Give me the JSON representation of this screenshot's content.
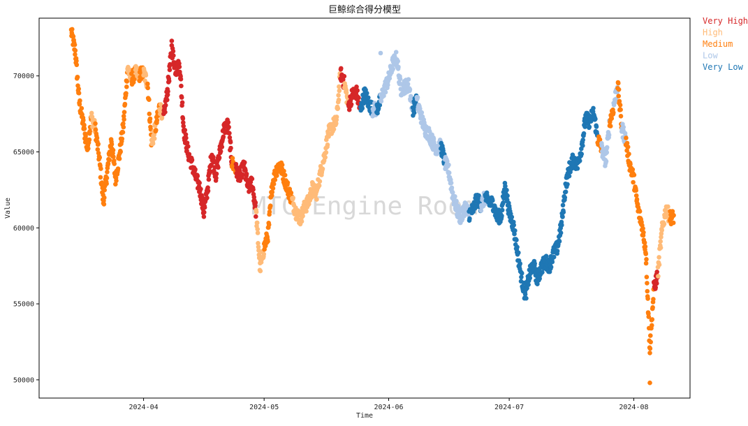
{
  "chart_data": {
    "type": "scatter",
    "title": "巨鲸综合得分模型",
    "xlabel": "Time",
    "ylabel": "Value",
    "watermark": "MTC Engine Room",
    "x_ticks": [
      "2024-04",
      "2024-05",
      "2024-06",
      "2024-07",
      "2024-08"
    ],
    "y_ticks": [
      50000,
      55000,
      60000,
      65000,
      70000
    ],
    "ylim": [
      48800,
      73800
    ],
    "xlim": [
      "2024-03-06",
      "2024-08-15"
    ],
    "legend_position": "outside-top-right",
    "grid": false,
    "categories": [
      {
        "name": "Very High",
        "color": "#d62728"
      },
      {
        "name": "High",
        "color": "#ffbb78"
      },
      {
        "name": "Medium",
        "color": "#ff7f0e"
      },
      {
        "name": "Low",
        "color": "#aec7e8"
      },
      {
        "name": "Very Low",
        "color": "#1f77b4"
      }
    ],
    "segments": [
      [
        "2024-03-14",
        72900,
        "Medium"
      ],
      [
        "2024-03-15",
        71600,
        "Medium"
      ],
      [
        "2024-03-16",
        68300,
        "Medium"
      ],
      [
        "2024-03-17",
        66800,
        "Medium"
      ],
      [
        "2024-03-18",
        65200,
        "Medium"
      ],
      [
        "2024-03-19",
        67300,
        "High"
      ],
      [
        "2024-03-20",
        66500,
        "Medium"
      ],
      [
        "2024-03-21",
        64500,
        "Medium"
      ],
      [
        "2024-03-22",
        61700,
        "Medium"
      ],
      [
        "2024-03-23",
        63800,
        "Medium"
      ],
      [
        "2024-03-24",
        65800,
        "Medium"
      ],
      [
        "2024-03-25",
        63200,
        "Medium"
      ],
      [
        "2024-03-26",
        64800,
        "Medium"
      ],
      [
        "2024-03-27",
        66800,
        "Medium"
      ],
      [
        "2024-03-28",
        70500,
        "High"
      ],
      [
        "2024-03-29",
        69800,
        "Medium"
      ],
      [
        "2024-03-30",
        70200,
        "High"
      ],
      [
        "2024-03-31",
        70100,
        "Medium"
      ],
      [
        "2024-04-01",
        70200,
        "High"
      ],
      [
        "2024-04-02",
        69500,
        "Medium"
      ],
      [
        "2024-04-03",
        65500,
        "High"
      ],
      [
        "2024-04-04",
        66600,
        "Medium"
      ],
      [
        "2024-04-05",
        68000,
        "High"
      ],
      [
        "2024-04-06",
        67300,
        "Very High"
      ],
      [
        "2024-04-07",
        69100,
        "Very High"
      ],
      [
        "2024-04-08",
        71800,
        "Very High"
      ],
      [
        "2024-04-09",
        70400,
        "Very High"
      ],
      [
        "2024-04-10",
        70700,
        "Very High"
      ],
      [
        "2024-04-11",
        66500,
        "Very High"
      ],
      [
        "2024-04-12",
        65000,
        "Very High"
      ],
      [
        "2024-04-13",
        64200,
        "Very High"
      ],
      [
        "2024-04-14",
        63300,
        "Very High"
      ],
      [
        "2024-04-15",
        62600,
        "Very High"
      ],
      [
        "2024-04-16",
        61000,
        "Very High"
      ],
      [
        "2024-04-17",
        62700,
        "Very High"
      ],
      [
        "2024-04-18",
        64900,
        "Very High"
      ],
      [
        "2024-04-19",
        63500,
        "Very High"
      ],
      [
        "2024-04-20",
        65000,
        "Very High"
      ],
      [
        "2024-04-21",
        66500,
        "Very High"
      ],
      [
        "2024-04-22",
        66800,
        "Very High"
      ],
      [
        "2024-04-23",
        64300,
        "Medium"
      ],
      [
        "2024-04-24",
        63800,
        "Very High"
      ],
      [
        "2024-04-25",
        63400,
        "Very High"
      ],
      [
        "2024-04-26",
        64100,
        "Very High"
      ],
      [
        "2024-04-27",
        62600,
        "Very High"
      ],
      [
        "2024-04-28",
        63000,
        "Very High"
      ],
      [
        "2024-04-29",
        61000,
        "High"
      ],
      [
        "2024-04-30",
        57300,
        "High"
      ],
      [
        "2024-05-01",
        58700,
        "Medium"
      ],
      [
        "2024-05-02",
        59600,
        "Medium"
      ],
      [
        "2024-05-03",
        62800,
        "Medium"
      ],
      [
        "2024-05-04",
        63800,
        "Medium"
      ],
      [
        "2024-05-05",
        64200,
        "Medium"
      ],
      [
        "2024-05-06",
        63300,
        "Medium"
      ],
      [
        "2024-05-07",
        62500,
        "Medium"
      ],
      [
        "2024-05-08",
        61800,
        "High"
      ],
      [
        "2024-05-09",
        61000,
        "High"
      ],
      [
        "2024-05-10",
        60600,
        "High"
      ],
      [
        "2024-05-11",
        61300,
        "High"
      ],
      [
        "2024-05-12",
        61700,
        "High"
      ],
      [
        "2024-05-13",
        62600,
        "High"
      ],
      [
        "2024-05-14",
        62200,
        "High"
      ],
      [
        "2024-05-15",
        63600,
        "High"
      ],
      [
        "2024-05-16",
        64700,
        "High"
      ],
      [
        "2024-05-17",
        66200,
        "High"
      ],
      [
        "2024-05-18",
        66700,
        "High"
      ],
      [
        "2024-05-19",
        67000,
        "High"
      ],
      [
        "2024-05-20",
        70200,
        "Very High"
      ],
      [
        "2024-05-21",
        69500,
        "High"
      ],
      [
        "2024-05-22",
        68000,
        "Very High"
      ],
      [
        "2024-05-23",
        68800,
        "Very High"
      ],
      [
        "2024-05-24",
        68900,
        "Very High"
      ],
      [
        "2024-05-25",
        67700,
        "Very Low"
      ],
      [
        "2024-05-26",
        68900,
        "Very Low"
      ],
      [
        "2024-05-27",
        68200,
        "Very Low"
      ],
      [
        "2024-05-28",
        67800,
        "Low"
      ],
      [
        "2024-05-29",
        67800,
        "Very Low"
      ],
      [
        "2024-05-30",
        68400,
        "Low"
      ],
      [
        "2024-05-31",
        69200,
        "Low"
      ],
      [
        "2024-06-01",
        69800,
        "Low"
      ],
      [
        "2024-06-02",
        70800,
        "Low"
      ],
      [
        "2024-06-03",
        71200,
        "Low"
      ],
      [
        "2024-06-04",
        69100,
        "Low"
      ],
      [
        "2024-06-05",
        69300,
        "Low"
      ],
      [
        "2024-06-06",
        69400,
        "Low"
      ],
      [
        "2024-06-07",
        67800,
        "Very Low"
      ],
      [
        "2024-06-08",
        68400,
        "Low"
      ],
      [
        "2024-06-09",
        67400,
        "Low"
      ],
      [
        "2024-06-10",
        66500,
        "Low"
      ],
      [
        "2024-06-11",
        66200,
        "Low"
      ],
      [
        "2024-06-12",
        65600,
        "Low"
      ],
      [
        "2024-06-13",
        65200,
        "Low"
      ],
      [
        "2024-06-14",
        65400,
        "Very Low"
      ],
      [
        "2024-06-15",
        64300,
        "Low"
      ],
      [
        "2024-06-16",
        63700,
        "Low"
      ],
      [
        "2024-06-17",
        62100,
        "Low"
      ],
      [
        "2024-06-18",
        61200,
        "Low"
      ],
      [
        "2024-06-19",
        60600,
        "Low"
      ],
      [
        "2024-06-20",
        61400,
        "Low"
      ],
      [
        "2024-06-21",
        60900,
        "Very Low"
      ],
      [
        "2024-06-22",
        61200,
        "Very Low"
      ],
      [
        "2024-06-23",
        61900,
        "Very Low"
      ],
      [
        "2024-06-24",
        61500,
        "Low"
      ],
      [
        "2024-06-25",
        62000,
        "Very Low"
      ],
      [
        "2024-06-26",
        61700,
        "Very Low"
      ],
      [
        "2024-06-27",
        61600,
        "Very Low"
      ],
      [
        "2024-06-28",
        60700,
        "Very Low"
      ],
      [
        "2024-06-29",
        60800,
        "Very Low"
      ],
      [
        "2024-06-30",
        62800,
        "Very Low"
      ],
      [
        "2024-07-01",
        61000,
        "Very Low"
      ],
      [
        "2024-07-02",
        60200,
        "Very Low"
      ],
      [
        "2024-07-03",
        58500,
        "Very Low"
      ],
      [
        "2024-07-04",
        56800,
        "Very Low"
      ],
      [
        "2024-07-05",
        55500,
        "Very Low"
      ],
      [
        "2024-07-06",
        56900,
        "Very Low"
      ],
      [
        "2024-07-07",
        57600,
        "Very Low"
      ],
      [
        "2024-07-08",
        56600,
        "Very Low"
      ],
      [
        "2024-07-09",
        57400,
        "Very Low"
      ],
      [
        "2024-07-10",
        57800,
        "Very Low"
      ],
      [
        "2024-07-11",
        57500,
        "Very Low"
      ],
      [
        "2024-07-12",
        58300,
        "Very Low"
      ],
      [
        "2024-07-13",
        58700,
        "Very Low"
      ],
      [
        "2024-07-14",
        60200,
        "Very Low"
      ],
      [
        "2024-07-15",
        62700,
        "Very Low"
      ],
      [
        "2024-07-16",
        63900,
        "Very Low"
      ],
      [
        "2024-07-17",
        64500,
        "Very Low"
      ],
      [
        "2024-07-18",
        64100,
        "Very Low"
      ],
      [
        "2024-07-19",
        65300,
        "Very Low"
      ],
      [
        "2024-07-20",
        67200,
        "Very Low"
      ],
      [
        "2024-07-21",
        67000,
        "Very Low"
      ],
      [
        "2024-07-22",
        67600,
        "Very Low"
      ],
      [
        "2024-07-23",
        65900,
        "Medium"
      ],
      [
        "2024-07-24",
        65200,
        "Low"
      ],
      [
        "2024-07-25",
        64400,
        "Low"
      ],
      [
        "2024-07-26",
        66900,
        "Medium"
      ],
      [
        "2024-07-27",
        68000,
        "Low"
      ],
      [
        "2024-07-28",
        69500,
        "Medium"
      ],
      [
        "2024-07-29",
        66600,
        "Low"
      ],
      [
        "2024-07-30",
        65800,
        "Medium"
      ],
      [
        "2024-07-31",
        64200,
        "Medium"
      ],
      [
        "2024-08-01",
        63200,
        "Medium"
      ],
      [
        "2024-08-02",
        61300,
        "Medium"
      ],
      [
        "2024-08-03",
        60200,
        "Medium"
      ],
      [
        "2024-08-04",
        58500,
        "Medium"
      ],
      [
        "2024-08-05",
        52000,
        "Medium"
      ],
      [
        "2024-08-06",
        56000,
        "Very High"
      ],
      [
        "2024-08-07",
        57000,
        "High"
      ],
      [
        "2024-08-08",
        59800,
        "High"
      ],
      [
        "2024-08-09",
        61200,
        "High"
      ],
      [
        "2024-08-10",
        60700,
        "Medium"
      ]
    ],
    "extremes": [
      [
        "2024-04-08",
        72300,
        "Very High"
      ],
      [
        "2024-05-30",
        71500,
        "Low"
      ],
      [
        "2024-08-05",
        49800,
        "Medium"
      ]
    ]
  }
}
